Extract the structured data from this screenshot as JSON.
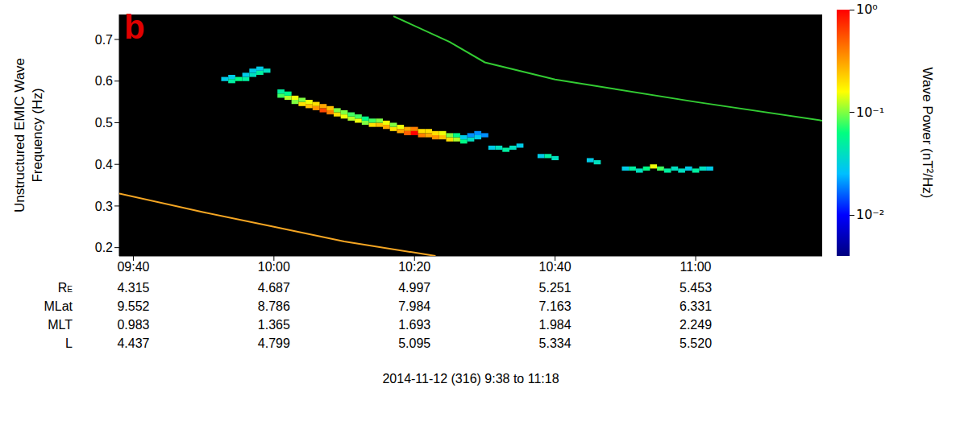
{
  "chart_data": {
    "type": "heatmap",
    "panel": "b",
    "ylabel": [
      "Unstructured EMIC Wave",
      "Frequency (Hz)"
    ],
    "xlabel": "2014-11-12 (316) 9:38 to 11:18",
    "xlim": [
      578,
      678
    ],
    "xticks": [
      {
        "value": 580,
        "label": "09:40"
      },
      {
        "value": 600,
        "label": "10:00"
      },
      {
        "value": 620,
        "label": "10:20"
      },
      {
        "value": 640,
        "label": "10:40"
      },
      {
        "value": 660,
        "label": "11:00"
      }
    ],
    "ylim": [
      0.18,
      0.76
    ],
    "yticks": [
      0.2,
      0.3,
      0.4,
      0.5,
      0.6,
      0.7
    ],
    "grid": false,
    "ephemeris": [
      {
        "label": "R",
        "subscript": "E",
        "values": [
          "4.315",
          "4.687",
          "4.997",
          "5.251",
          "5.453"
        ]
      },
      {
        "label": "MLat",
        "subscript": "",
        "values": [
          "9.552",
          "8.786",
          "7.984",
          "7.163",
          "6.331"
        ]
      },
      {
        "label": "MLT",
        "subscript": "",
        "values": [
          "0.983",
          "1.365",
          "1.693",
          "1.984",
          "2.249"
        ]
      },
      {
        "label": "L",
        "subscript": "",
        "values": [
          "4.437",
          "4.799",
          "5.095",
          "5.334",
          "5.520"
        ]
      }
    ],
    "cells": {
      "dx": 1,
      "dy": 0.01,
      "values": [
        [
          593,
          0.605,
          0.03
        ],
        [
          594,
          0.6,
          0.05
        ],
        [
          594,
          0.61,
          0.03
        ],
        [
          595,
          0.605,
          0.06
        ],
        [
          596,
          0.605,
          0.05
        ],
        [
          596,
          0.615,
          0.03
        ],
        [
          597,
          0.615,
          0.04
        ],
        [
          597,
          0.625,
          0.03
        ],
        [
          598,
          0.62,
          0.05
        ],
        [
          598,
          0.63,
          0.03
        ],
        [
          599,
          0.625,
          0.04
        ],
        [
          601,
          0.565,
          0.08
        ],
        [
          601,
          0.575,
          0.05
        ],
        [
          602,
          0.56,
          0.12
        ],
        [
          602,
          0.57,
          0.06
        ],
        [
          603,
          0.55,
          0.1
        ],
        [
          603,
          0.56,
          0.15
        ],
        [
          604,
          0.545,
          0.2
        ],
        [
          604,
          0.555,
          0.1
        ],
        [
          605,
          0.54,
          0.25
        ],
        [
          605,
          0.55,
          0.15
        ],
        [
          606,
          0.535,
          0.35
        ],
        [
          606,
          0.545,
          0.2
        ],
        [
          607,
          0.53,
          0.6
        ],
        [
          607,
          0.54,
          0.3
        ],
        [
          608,
          0.525,
          0.4
        ],
        [
          608,
          0.535,
          0.25
        ],
        [
          609,
          0.52,
          0.2
        ],
        [
          609,
          0.53,
          0.1
        ],
        [
          610,
          0.515,
          0.15
        ],
        [
          610,
          0.525,
          0.1
        ],
        [
          611,
          0.51,
          0.12
        ],
        [
          611,
          0.52,
          0.08
        ],
        [
          612,
          0.505,
          0.15
        ],
        [
          612,
          0.515,
          0.08
        ],
        [
          613,
          0.5,
          0.1
        ],
        [
          613,
          0.51,
          0.06
        ],
        [
          614,
          0.495,
          0.2
        ],
        [
          614,
          0.505,
          0.08
        ],
        [
          615,
          0.495,
          0.25
        ],
        [
          615,
          0.505,
          0.1
        ],
        [
          616,
          0.49,
          0.3
        ],
        [
          616,
          0.5,
          0.15
        ],
        [
          617,
          0.485,
          0.2
        ],
        [
          617,
          0.495,
          0.1
        ],
        [
          618,
          0.48,
          0.3
        ],
        [
          618,
          0.49,
          0.15
        ],
        [
          619,
          0.475,
          0.5
        ],
        [
          619,
          0.485,
          0.3
        ],
        [
          620,
          0.475,
          1.0
        ],
        [
          620,
          0.485,
          0.4
        ],
        [
          621,
          0.47,
          0.4
        ],
        [
          621,
          0.48,
          0.2
        ],
        [
          622,
          0.47,
          0.3
        ],
        [
          622,
          0.48,
          0.2
        ],
        [
          623,
          0.465,
          0.35
        ],
        [
          623,
          0.475,
          0.2
        ],
        [
          624,
          0.465,
          0.25
        ],
        [
          624,
          0.475,
          0.15
        ],
        [
          625,
          0.46,
          0.2
        ],
        [
          625,
          0.47,
          0.1
        ],
        [
          626,
          0.46,
          0.12
        ],
        [
          626,
          0.47,
          0.06
        ],
        [
          627,
          0.455,
          0.06
        ],
        [
          627,
          0.465,
          0.03
        ],
        [
          628,
          0.46,
          0.04
        ],
        [
          628,
          0.47,
          0.02
        ],
        [
          629,
          0.465,
          0.03
        ],
        [
          629,
          0.475,
          0.02
        ],
        [
          630,
          0.47,
          0.02
        ],
        [
          631,
          0.44,
          0.03
        ],
        [
          632,
          0.44,
          0.04
        ],
        [
          633,
          0.435,
          0.05
        ],
        [
          634,
          0.44,
          0.04
        ],
        [
          635,
          0.445,
          0.03
        ],
        [
          638,
          0.42,
          0.03
        ],
        [
          639,
          0.42,
          0.05
        ],
        [
          640,
          0.415,
          0.04
        ],
        [
          645,
          0.41,
          0.03
        ],
        [
          646,
          0.405,
          0.04
        ],
        [
          650,
          0.39,
          0.03
        ],
        [
          651,
          0.39,
          0.05
        ],
        [
          652,
          0.385,
          0.04
        ],
        [
          653,
          0.39,
          0.06
        ],
        [
          654,
          0.395,
          0.15
        ],
        [
          655,
          0.39,
          0.08
        ],
        [
          656,
          0.385,
          0.05
        ],
        [
          657,
          0.39,
          0.04
        ],
        [
          658,
          0.385,
          0.04
        ],
        [
          659,
          0.39,
          0.03
        ],
        [
          660,
          0.385,
          0.05
        ],
        [
          661,
          0.39,
          0.04
        ],
        [
          662,
          0.39,
          0.03
        ]
      ]
    },
    "colorbar": {
      "label": "Wave Power (nT²/Hz)",
      "log": true,
      "range": [
        0.004,
        1
      ],
      "ticks": [
        {
          "value": 1,
          "label": "10⁰"
        },
        {
          "value": 0.1,
          "label": "10⁻¹"
        },
        {
          "value": 0.01,
          "label": "10⁻²"
        }
      ],
      "colors": [
        "#00007f",
        "#0000ff",
        "#00bfff",
        "#00ff80",
        "#ffff00",
        "#ff8000",
        "#ff0000"
      ]
    },
    "series": [
      {
        "color": "#33cc33",
        "x": [
          617,
          625,
          630,
          640,
          660,
          678
        ],
        "values": [
          0.756,
          0.694,
          0.645,
          0.604,
          0.55,
          0.505
        ]
      },
      {
        "color": "#f5a623",
        "x": [
          578,
          590,
          600,
          610,
          623
        ],
        "values": [
          0.33,
          0.285,
          0.25,
          0.215,
          0.18
        ]
      }
    ]
  }
}
